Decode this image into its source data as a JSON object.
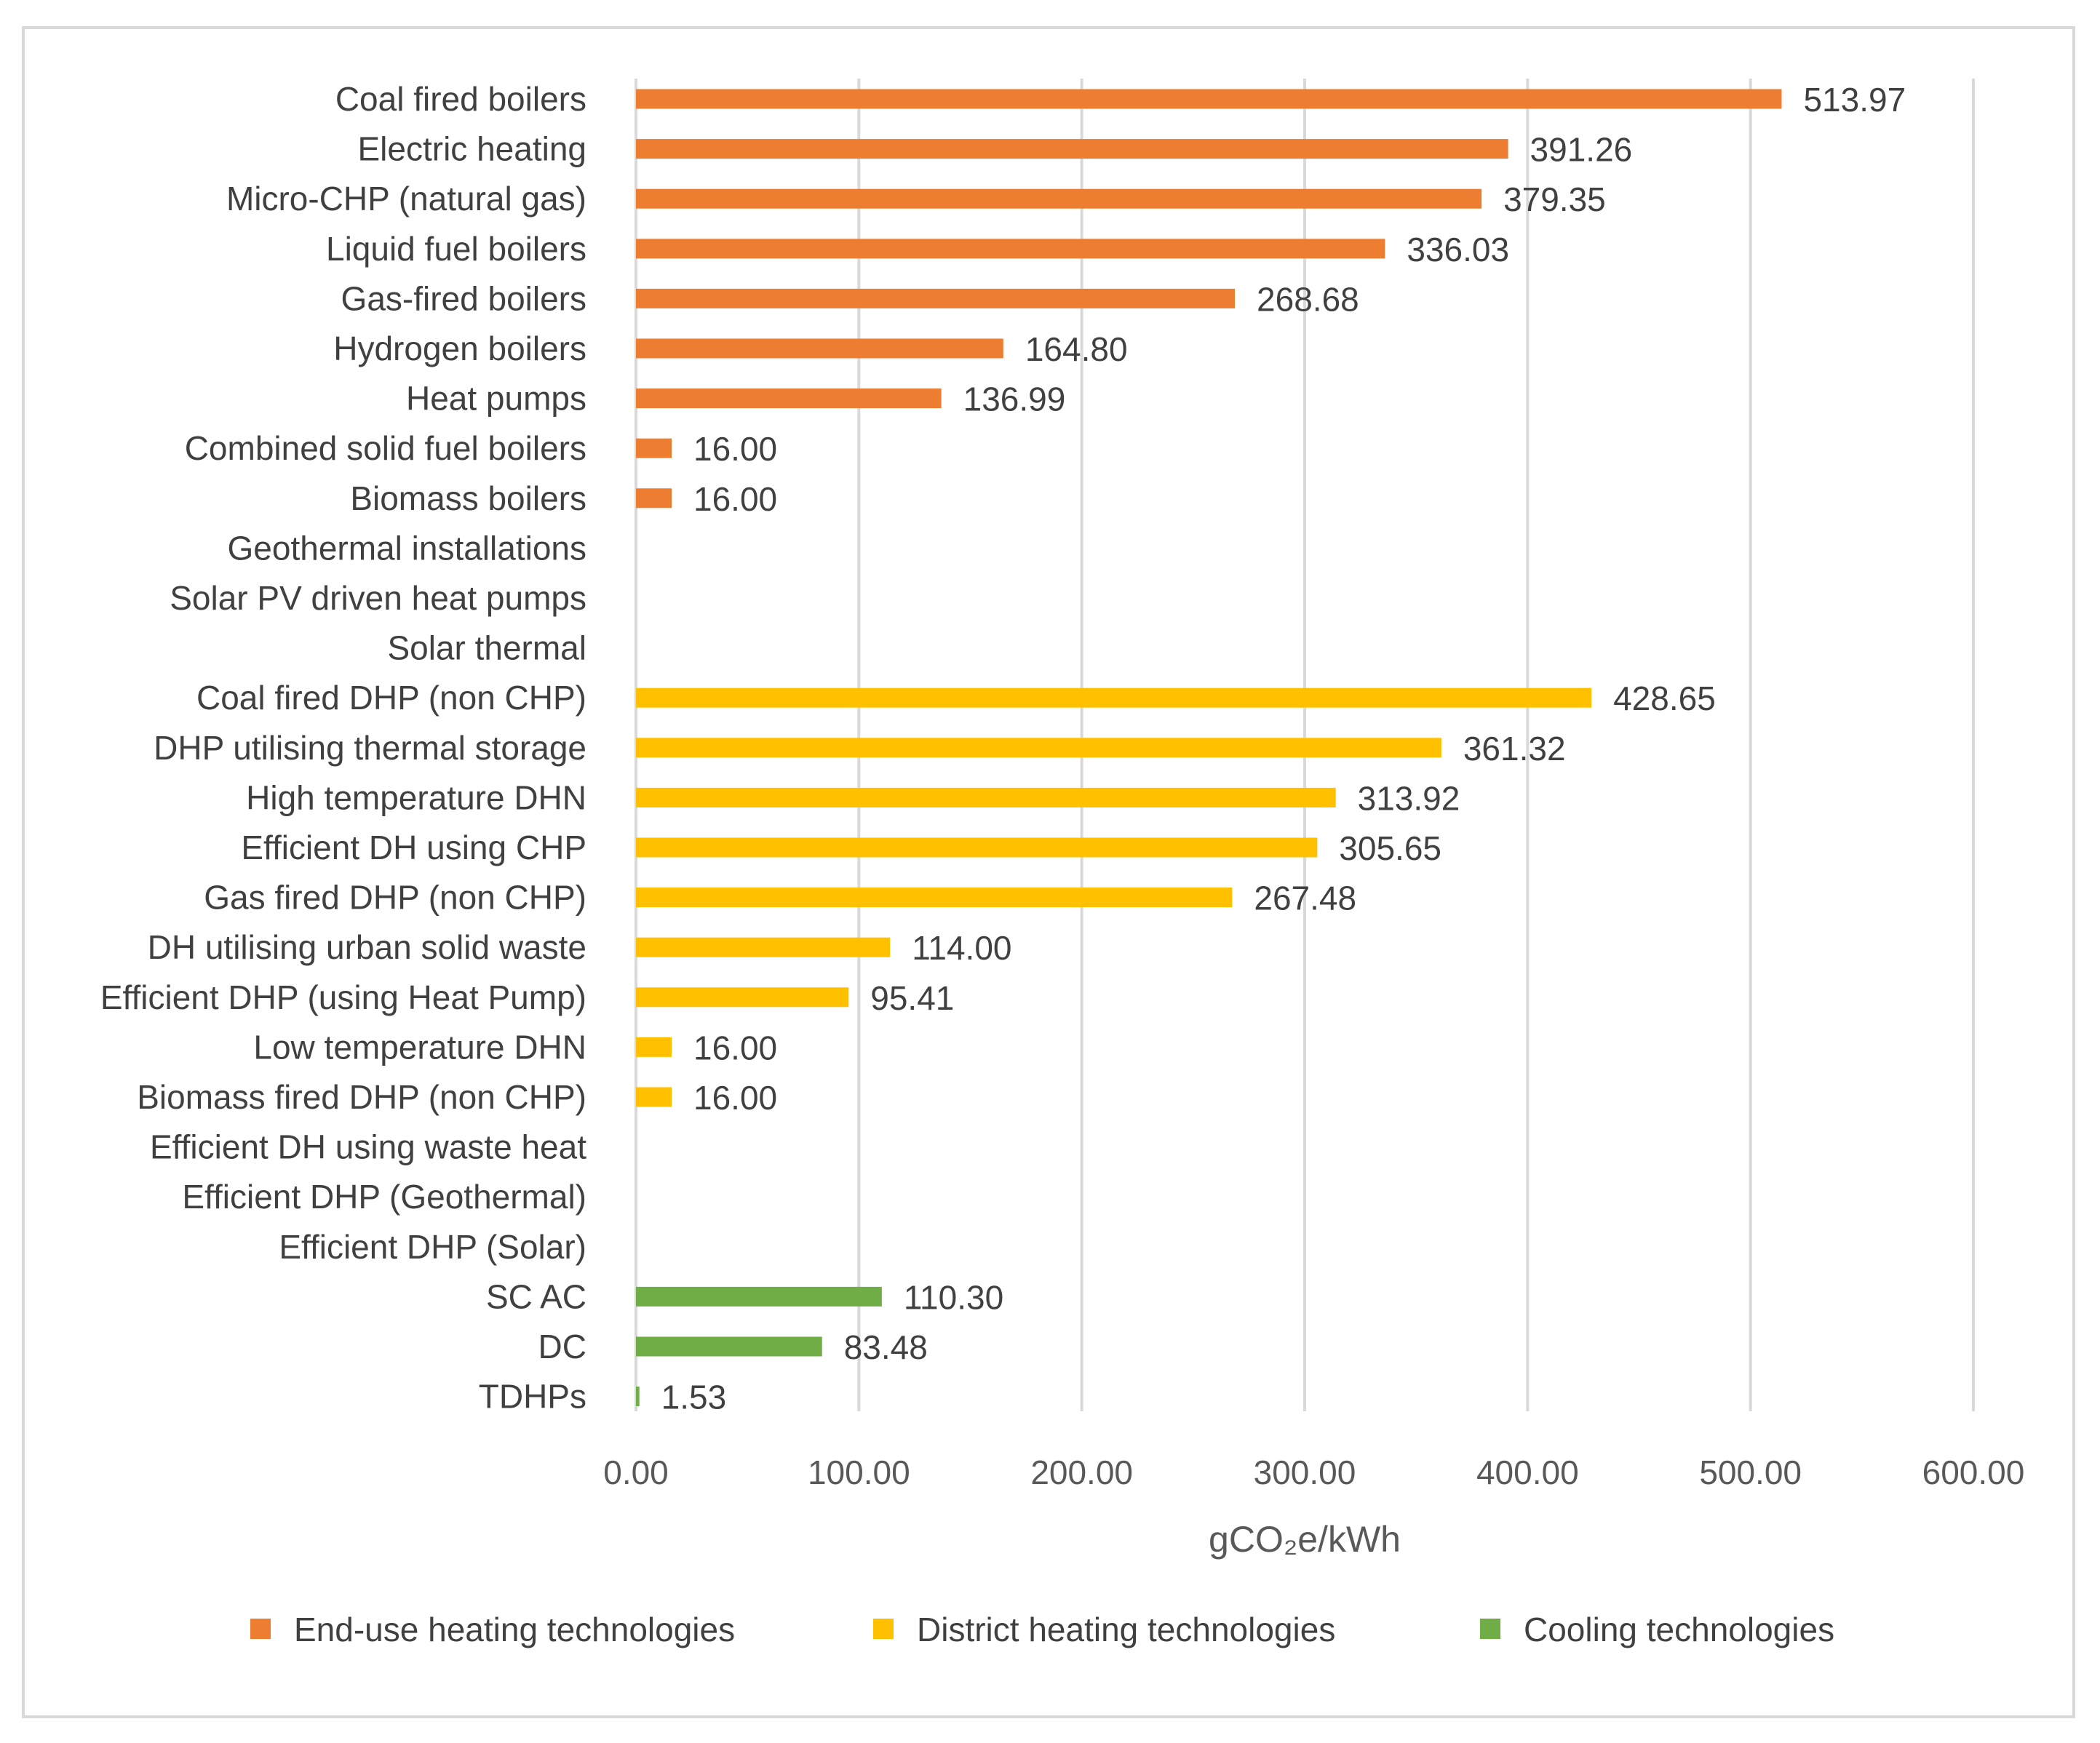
{
  "chart_data": {
    "type": "bar",
    "orientation": "horizontal",
    "title": "",
    "xlabel": "gCO₂e/kWh",
    "ylabel": "",
    "xlim": [
      0,
      600
    ],
    "xticks": [
      0,
      100,
      200,
      300,
      400,
      500,
      600
    ],
    "xtick_labels": [
      "0.00",
      "100.00",
      "200.00",
      "300.00",
      "400.00",
      "500.00",
      "600.00"
    ],
    "grid": true,
    "legend_position": "bottom",
    "series": [
      {
        "name": "End-use heating technologies",
        "color": "#ED7D31"
      },
      {
        "name": "District heating technologies",
        "color": "#FFC000"
      },
      {
        "name": "Cooling technologies",
        "color": "#70AD47"
      }
    ],
    "bars": [
      {
        "category": "Coal fired boilers",
        "value": 513.97,
        "label": "513.97",
        "series": 0
      },
      {
        "category": "Electric heating",
        "value": 391.26,
        "label": "391.26",
        "series": 0
      },
      {
        "category": "Micro-CHP (natural gas)",
        "value": 379.35,
        "label": "379.35",
        "series": 0
      },
      {
        "category": "Liquid fuel boilers",
        "value": 336.03,
        "label": "336.03",
        "series": 0
      },
      {
        "category": "Gas-fired boilers",
        "value": 268.68,
        "label": "268.68",
        "series": 0
      },
      {
        "category": "Hydrogen boilers",
        "value": 164.8,
        "label": "164.80",
        "series": 0
      },
      {
        "category": "Heat pumps",
        "value": 136.99,
        "label": "136.99",
        "series": 0
      },
      {
        "category": "Combined solid fuel boilers",
        "value": 16.0,
        "label": "16.00",
        "series": 0
      },
      {
        "category": "Biomass boilers",
        "value": 16.0,
        "label": "16.00",
        "series": 0
      },
      {
        "category": "Geothermal installations",
        "value": null,
        "label": "",
        "series": 0
      },
      {
        "category": "Solar PV driven heat pumps",
        "value": null,
        "label": "",
        "series": 0
      },
      {
        "category": "Solar thermal",
        "value": null,
        "label": "",
        "series": 0
      },
      {
        "category": "Coal fired DHP (non CHP)",
        "value": 428.65,
        "label": "428.65",
        "series": 1
      },
      {
        "category": "DHP utilising thermal storage",
        "value": 361.32,
        "label": "361.32",
        "series": 1
      },
      {
        "category": "High temperature DHN",
        "value": 313.92,
        "label": "313.92",
        "series": 1
      },
      {
        "category": "Efficient DH using CHP",
        "value": 305.65,
        "label": "305.65",
        "series": 1
      },
      {
        "category": "Gas fired DHP (non CHP)",
        "value": 267.48,
        "label": "267.48",
        "series": 1
      },
      {
        "category": "DH utilising urban solid waste",
        "value": 114.0,
        "label": "114.00",
        "series": 1
      },
      {
        "category": "Efficient DHP (using Heat Pump)",
        "value": 95.41,
        "label": "95.41",
        "series": 1
      },
      {
        "category": "Low temperature DHN",
        "value": 16.0,
        "label": "16.00",
        "series": 1
      },
      {
        "category": "Biomass fired DHP (non CHP)",
        "value": 16.0,
        "label": "16.00",
        "series": 1
      },
      {
        "category": "Efficient DH using waste heat",
        "value": null,
        "label": "",
        "series": 1
      },
      {
        "category": "Efficient DHP (Geothermal)",
        "value": null,
        "label": "",
        "series": 1
      },
      {
        "category": "Efficient DHP (Solar)",
        "value": null,
        "label": "",
        "series": 1
      },
      {
        "category": "SC AC",
        "value": 110.3,
        "label": "110.30",
        "series": 2
      },
      {
        "category": "DC",
        "value": 83.48,
        "label": "83.48",
        "series": 2
      },
      {
        "category": "TDHPs",
        "value": 1.53,
        "label": "1.53",
        "series": 2
      }
    ]
  }
}
